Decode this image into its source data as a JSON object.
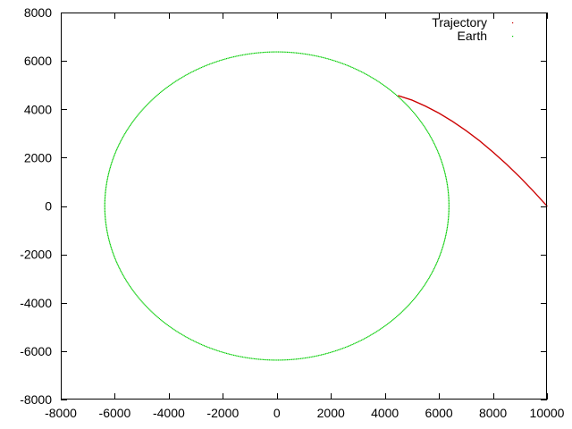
{
  "chart_data": {
    "type": "scatter",
    "title": "",
    "xlabel": "",
    "ylabel": "",
    "xlim": [
      -8000,
      10000
    ],
    "ylim": [
      -8000,
      8000
    ],
    "xticks": [
      -8000,
      -6000,
      -4000,
      -2000,
      0,
      2000,
      4000,
      6000,
      8000,
      10000
    ],
    "yticks": [
      -8000,
      -6000,
      -4000,
      -2000,
      0,
      2000,
      4000,
      6000,
      8000
    ],
    "grid": false,
    "legend_position": "top-right",
    "series": [
      {
        "name": "Trajectory",
        "color": "#cc0000",
        "style": "points",
        "points": [
          [
            10000,
            0
          ],
          [
            9500,
            610
          ],
          [
            9000,
            1190
          ],
          [
            8500,
            1730
          ],
          [
            8000,
            2230
          ],
          [
            7500,
            2700
          ],
          [
            7000,
            3120
          ],
          [
            6500,
            3500
          ],
          [
            6000,
            3840
          ],
          [
            5500,
            4130
          ],
          [
            5000,
            4380
          ],
          [
            4500,
            4560
          ]
        ]
      },
      {
        "name": "Earth",
        "color": "#00cc00",
        "style": "points",
        "shape": "circle",
        "center": [
          0,
          0
        ],
        "radius": 6371
      }
    ]
  }
}
